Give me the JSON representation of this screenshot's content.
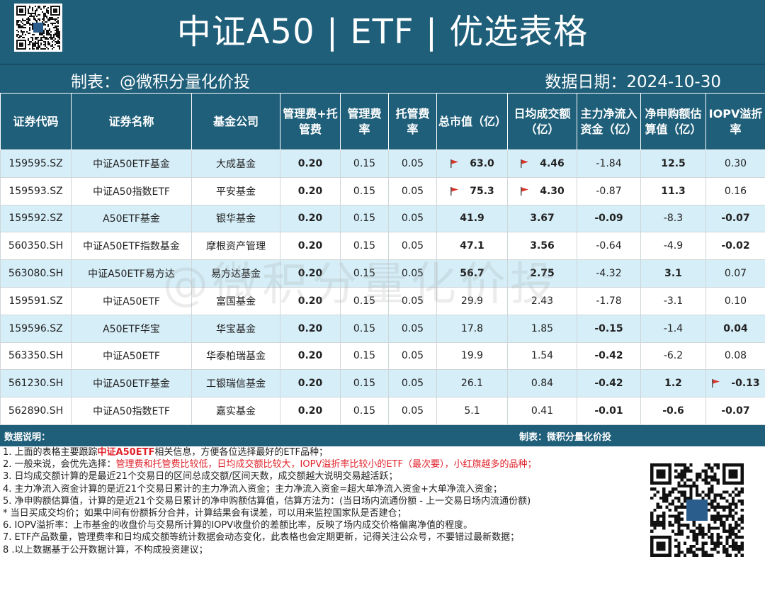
{
  "header": {
    "title": "中证A50 | ETF | 优选表格",
    "maker": "制表：@微积分量化价投",
    "date": "数据日期：2024-10-30"
  },
  "table": {
    "columns": [
      "证券代码",
      "证券名称",
      "基金公司",
      "管理费+托管费",
      "管理费率",
      "托管费率",
      "总市值（亿）",
      "日均成交额（亿）",
      "主力净流入资金（亿）",
      "净申购额估算值（亿）",
      "IOPV溢折率"
    ],
    "rows": [
      {
        "code": "159595.SZ",
        "name": "中证A50ETF基金",
        "company": "大成基金",
        "total_fee": "0.20",
        "mgmt_fee": "0.15",
        "custody_fee": "0.05",
        "mkt_cap": "63.0",
        "mkt_cap_flag": true,
        "turnover": "4.46",
        "turnover_flag": true,
        "net_inflow": "-1.84",
        "net_subs": "12.5",
        "iopv": "0.30",
        "iopv_flag": false,
        "hl": [
          0,
          0,
          1,
          1,
          0,
          1,
          0
        ]
      },
      {
        "code": "159593.SZ",
        "name": "中证A50指数ETF",
        "company": "平安基金",
        "total_fee": "0.20",
        "mgmt_fee": "0.15",
        "custody_fee": "0.05",
        "mkt_cap": "75.3",
        "mkt_cap_flag": true,
        "turnover": "4.30",
        "turnover_flag": true,
        "net_inflow": "-0.87",
        "net_subs": "11.3",
        "iopv": "0.16",
        "iopv_flag": false,
        "hl": [
          0,
          0,
          1,
          1,
          0,
          1,
          0
        ]
      },
      {
        "code": "159592.SZ",
        "name": "A50ETF基金",
        "company": "银华基金",
        "total_fee": "0.20",
        "mgmt_fee": "0.15",
        "custody_fee": "0.05",
        "mkt_cap": "41.9",
        "mkt_cap_flag": false,
        "turnover": "3.67",
        "turnover_flag": false,
        "net_inflow": "-0.09",
        "net_subs": "-8.3",
        "iopv": "-0.07",
        "iopv_flag": false,
        "hl": [
          0,
          0,
          1,
          1,
          1,
          0,
          1
        ]
      },
      {
        "code": "560350.SH",
        "name": "中证A50ETF指数基金",
        "company": "摩根资产管理",
        "total_fee": "0.20",
        "mgmt_fee": "0.15",
        "custody_fee": "0.05",
        "mkt_cap": "47.1",
        "mkt_cap_flag": false,
        "turnover": "3.56",
        "turnover_flag": false,
        "net_inflow": "-0.64",
        "net_subs": "-4.9",
        "iopv": "-0.02",
        "iopv_flag": false,
        "hl": [
          0,
          0,
          1,
          1,
          0,
          0,
          1
        ]
      },
      {
        "code": "563080.SH",
        "name": "中证A50ETF易方达",
        "company": "易方达基金",
        "total_fee": "0.20",
        "mgmt_fee": "0.15",
        "custody_fee": "0.05",
        "mkt_cap": "56.7",
        "mkt_cap_flag": false,
        "turnover": "2.75",
        "turnover_flag": false,
        "net_inflow": "-4.32",
        "net_subs": "3.1",
        "iopv": "0.07",
        "iopv_flag": false,
        "hl": [
          0,
          0,
          1,
          1,
          0,
          1,
          0
        ]
      },
      {
        "code": "159591.SZ",
        "name": "中证A50ETF",
        "company": "富国基金",
        "total_fee": "0.20",
        "mgmt_fee": "0.15",
        "custody_fee": "0.05",
        "mkt_cap": "29.9",
        "mkt_cap_flag": false,
        "turnover": "2.43",
        "turnover_flag": false,
        "net_inflow": "-1.78",
        "net_subs": "-3.1",
        "iopv": "0.10",
        "iopv_flag": false,
        "hl": [
          0,
          0,
          0,
          0,
          0,
          0,
          0
        ]
      },
      {
        "code": "159596.SZ",
        "name": "A50ETF华宝",
        "company": "华宝基金",
        "total_fee": "0.20",
        "mgmt_fee": "0.15",
        "custody_fee": "0.05",
        "mkt_cap": "17.8",
        "mkt_cap_flag": false,
        "turnover": "1.85",
        "turnover_flag": false,
        "net_inflow": "-0.15",
        "net_subs": "-1.4",
        "iopv": "0.04",
        "iopv_flag": false,
        "hl": [
          0,
          0,
          0,
          0,
          1,
          0,
          1
        ]
      },
      {
        "code": "563350.SH",
        "name": "中证A50ETF",
        "company": "华泰柏瑞基金",
        "total_fee": "0.20",
        "mgmt_fee": "0.15",
        "custody_fee": "0.05",
        "mkt_cap": "19.9",
        "mkt_cap_flag": false,
        "turnover": "1.54",
        "turnover_flag": false,
        "net_inflow": "-0.42",
        "net_subs": "-6.2",
        "iopv": "0.08",
        "iopv_flag": false,
        "hl": [
          0,
          0,
          0,
          0,
          1,
          0,
          0
        ]
      },
      {
        "code": "561230.SH",
        "name": "中证A50ETF基金",
        "company": "工银瑞信基金",
        "total_fee": "0.20",
        "mgmt_fee": "0.15",
        "custody_fee": "0.05",
        "mkt_cap": "26.1",
        "mkt_cap_flag": false,
        "turnover": "0.84",
        "turnover_flag": false,
        "net_inflow": "-0.42",
        "net_subs": "1.2",
        "iopv": "-0.13",
        "iopv_flag": true,
        "hl": [
          0,
          0,
          0,
          0,
          1,
          1,
          1
        ]
      },
      {
        "code": "562890.SH",
        "name": "中证A50指数ETF",
        "company": "嘉实基金",
        "total_fee": "0.20",
        "mgmt_fee": "0.15",
        "custody_fee": "0.05",
        "mkt_cap": "5.1",
        "mkt_cap_flag": false,
        "turnover": "0.41",
        "turnover_flag": false,
        "net_inflow": "-0.01",
        "net_subs": "-0.6",
        "iopv": "-0.07",
        "iopv_flag": false,
        "hl": [
          0,
          0,
          0,
          0,
          1,
          1,
          1
        ]
      }
    ]
  },
  "notes_bar": {
    "left": "数据说明：",
    "right": "制表：微积分量化价投"
  },
  "notes": {
    "n1_pre": "1. 上面的表格主要跟踪",
    "n1_red": "中证A50ETF",
    "n1_post": "相关信息，方便各位选择最好的ETF品种；",
    "n2_pre": "2. 一般来说，会优先选择：",
    "n2_red": "管理费和托管费比较低，日均成交额比较大，IOPV溢折率比较小的ETF（最次要），小红旗越多的品种；",
    "n3": "3. 日均成交额计算的是最近21个交易日的区间总成交额/区间天数，成交额越大说明交易越活跃；",
    "n4": "4. 主力净流入资金计算的是近21个交易日累计的主力净流入资金；主力净流入资金=超大单净流入资金+大单净流入资金；",
    "n5": "5. 净申购额估算值，计算的是近21个交易日累计的净申购额估算值，估算方法为：(当日场内流通份额 - 上一交易日场内流通份额)",
    "n5b": "* 当日买成交均价；如果中间有份额拆分合并，计算结果会有误差，可以用来监控国家队是否建仓；",
    "n6": "6.  IOPV溢折率：上市基金的收盘价与交易所计算的IOPV收盘价的差额比率，反映了场内成交价格偏离净值的程度。",
    "n7": "7. ETF产品数量，管理费率和日均成交额等统计数据会动态变化，此表格也会定期更新，记得关注公众号，不要错过最新数据；",
    "n8": "8 .以上数据基于公开数据计算，不构成投资建议；"
  },
  "watermark": "@微积分量化价投",
  "colors": {
    "header_bg": "#1f5f7a",
    "row_stripe": "#d6eef8",
    "highlight": "#e8772a",
    "note_red": "#e0222a",
    "flag": "#d9362b"
  }
}
